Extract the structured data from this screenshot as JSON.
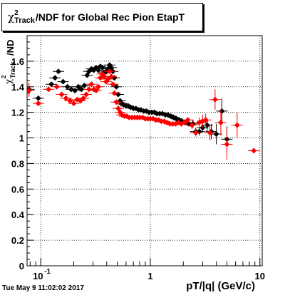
{
  "title": {
    "symbol": "χ",
    "superscript": "2",
    "subscript": "Track",
    "rest": "/NDF for Global Rec Pion EtapT"
  },
  "axes": {
    "xlabel": "pT/|q| (GeV/c)",
    "ylabel_prefix": "χ",
    "ylabel_sub": "Track",
    "ylabel_sup": "2",
    "ylabel_suffix": "/ND"
  },
  "footer": "Tue May  9 11:02:02 2017",
  "colors": {
    "series1": "#000000",
    "series2": "#ff0000",
    "grid": "#000000"
  },
  "chart_data": {
    "type": "scatter",
    "title": "χ²_Track/NDF for Global Rec Pion EtapT",
    "xlabel": "pT/|q| (GeV/c)",
    "ylabel": "χ²_Track/ND",
    "xscale": "log",
    "xlim": [
      0.075,
      10.5
    ],
    "ylim": [
      0,
      1.8
    ],
    "grid": true,
    "x_ticks": [
      {
        "v": 0.1,
        "label": "10^-1"
      },
      {
        "v": 1,
        "label": "1"
      },
      {
        "v": 10,
        "label": "10"
      }
    ],
    "y_ticks": [
      0,
      0.2,
      0.4,
      0.6,
      0.8,
      1,
      1.2,
      1.4,
      1.6
    ],
    "series": [
      {
        "color": "#000000",
        "points": [
          [
            0.078,
            1.38,
            0.05
          ],
          [
            0.095,
            1.31,
            0
          ],
          [
            0.125,
            1.42,
            0
          ],
          [
            0.135,
            1.47,
            0
          ],
          [
            0.145,
            1.52,
            0
          ],
          [
            0.16,
            1.44,
            0
          ],
          [
            0.175,
            1.4,
            0
          ],
          [
            0.19,
            1.38,
            0
          ],
          [
            0.205,
            1.37,
            0
          ],
          [
            0.22,
            1.4,
            0
          ],
          [
            0.235,
            1.38,
            0
          ],
          [
            0.25,
            1.41,
            0
          ],
          [
            0.265,
            1.49,
            0
          ],
          [
            0.275,
            1.52,
            0
          ],
          [
            0.29,
            1.54,
            0
          ],
          [
            0.305,
            1.53,
            0
          ],
          [
            0.32,
            1.55,
            0
          ],
          [
            0.335,
            1.53,
            0
          ],
          [
            0.35,
            1.56,
            0
          ],
          [
            0.365,
            1.55,
            0
          ],
          [
            0.38,
            1.51,
            0
          ],
          [
            0.395,
            1.52,
            0
          ],
          [
            0.41,
            1.54,
            0
          ],
          [
            0.425,
            1.57,
            0
          ],
          [
            0.44,
            1.55,
            0
          ],
          [
            0.455,
            1.52,
            0
          ],
          [
            0.47,
            1.47,
            0
          ],
          [
            0.49,
            1.4,
            0
          ],
          [
            0.51,
            1.34,
            0
          ],
          [
            0.53,
            1.29,
            0
          ],
          [
            0.55,
            1.27,
            0
          ],
          [
            0.57,
            1.26,
            0
          ],
          [
            0.6,
            1.25,
            0
          ],
          [
            0.63,
            1.25,
            0
          ],
          [
            0.66,
            1.24,
            0
          ],
          [
            0.7,
            1.23,
            0
          ],
          [
            0.74,
            1.23,
            0
          ],
          [
            0.78,
            1.22,
            0
          ],
          [
            0.82,
            1.22,
            0
          ],
          [
            0.87,
            1.21,
            0
          ],
          [
            0.92,
            1.21,
            0
          ],
          [
            0.97,
            1.2,
            0
          ],
          [
            1.03,
            1.2,
            0
          ],
          [
            1.09,
            1.2,
            0
          ],
          [
            1.15,
            1.19,
            0
          ],
          [
            1.22,
            1.19,
            0
          ],
          [
            1.29,
            1.19,
            0
          ],
          [
            1.37,
            1.18,
            0
          ],
          [
            1.45,
            1.18,
            0
          ],
          [
            1.54,
            1.17,
            0
          ],
          [
            1.63,
            1.16,
            0
          ],
          [
            1.73,
            1.15,
            0
          ],
          [
            1.83,
            1.14,
            0
          ],
          [
            1.95,
            1.13,
            0
          ],
          [
            2.1,
            1.12,
            0
          ],
          [
            2.25,
            1.11,
            0.02
          ],
          [
            2.45,
            1.11,
            0.03
          ],
          [
            2.6,
            1.05,
            0.03
          ],
          [
            2.8,
            1.05,
            0.03
          ],
          [
            3.0,
            1.08,
            0.04
          ],
          [
            3.3,
            1.1,
            0.05
          ],
          [
            3.6,
            1.05,
            0.06
          ],
          [
            4.0,
            1.03,
            0.08
          ],
          [
            4.5,
            1.21,
            0.1
          ],
          [
            5.0,
            0.99,
            0.1
          ]
        ]
      },
      {
        "color": "#ff0000",
        "points": [
          [
            0.078,
            1.37,
            0.05
          ],
          [
            0.095,
            1.27,
            0.02
          ],
          [
            0.118,
            1.38,
            0
          ],
          [
            0.14,
            1.4,
            0
          ],
          [
            0.155,
            1.34,
            0
          ],
          [
            0.17,
            1.31,
            0
          ],
          [
            0.185,
            1.29,
            0
          ],
          [
            0.2,
            1.27,
            0
          ],
          [
            0.215,
            1.3,
            0
          ],
          [
            0.23,
            1.29,
            0
          ],
          [
            0.245,
            1.31,
            0
          ],
          [
            0.26,
            1.34,
            0
          ],
          [
            0.275,
            1.38,
            0
          ],
          [
            0.29,
            1.42,
            0
          ],
          [
            0.305,
            1.38,
            0
          ],
          [
            0.32,
            1.37,
            0
          ],
          [
            0.335,
            1.4,
            0
          ],
          [
            0.35,
            1.47,
            0
          ],
          [
            0.365,
            1.5,
            0
          ],
          [
            0.38,
            1.48,
            0
          ],
          [
            0.395,
            1.44,
            0
          ],
          [
            0.41,
            1.46,
            0
          ],
          [
            0.425,
            1.52,
            0
          ],
          [
            0.44,
            1.48,
            0
          ],
          [
            0.455,
            1.42,
            0
          ],
          [
            0.47,
            1.35,
            0
          ],
          [
            0.49,
            1.28,
            0
          ],
          [
            0.51,
            1.23,
            0
          ],
          [
            0.53,
            1.2,
            0
          ],
          [
            0.55,
            1.18,
            0
          ],
          [
            0.58,
            1.17,
            0
          ],
          [
            0.61,
            1.17,
            0
          ],
          [
            0.64,
            1.16,
            0
          ],
          [
            0.68,
            1.16,
            0
          ],
          [
            0.72,
            1.16,
            0
          ],
          [
            0.76,
            1.16,
            0
          ],
          [
            0.8,
            1.16,
            0
          ],
          [
            0.85,
            1.16,
            0
          ],
          [
            0.9,
            1.15,
            0
          ],
          [
            0.95,
            1.15,
            0
          ],
          [
            1.0,
            1.15,
            0
          ],
          [
            1.06,
            1.15,
            0
          ],
          [
            1.12,
            1.14,
            0
          ],
          [
            1.19,
            1.14,
            0
          ],
          [
            1.26,
            1.13,
            0
          ],
          [
            1.34,
            1.13,
            0
          ],
          [
            1.42,
            1.12,
            0
          ],
          [
            1.51,
            1.11,
            0
          ],
          [
            1.6,
            1.11,
            0
          ],
          [
            1.7,
            1.11,
            0
          ],
          [
            1.8,
            1.12,
            0
          ],
          [
            1.92,
            1.11,
            0
          ],
          [
            2.05,
            1.12,
            0.01
          ],
          [
            2.2,
            1.14,
            0.02
          ],
          [
            2.4,
            1.1,
            0.03
          ],
          [
            2.6,
            1.04,
            0.03
          ],
          [
            2.8,
            1.12,
            0.04
          ],
          [
            3.0,
            1.13,
            0.05
          ],
          [
            3.2,
            1.14,
            0.05
          ],
          [
            3.5,
            1.04,
            0.06
          ],
          [
            3.9,
            1.3,
            0.08
          ],
          [
            4.4,
            1.12,
            0.1
          ],
          [
            5.0,
            0.95,
            0.12
          ],
          [
            6.2,
            1.1,
            0.1
          ],
          [
            8.8,
            0.9,
            0
          ]
        ]
      }
    ]
  }
}
